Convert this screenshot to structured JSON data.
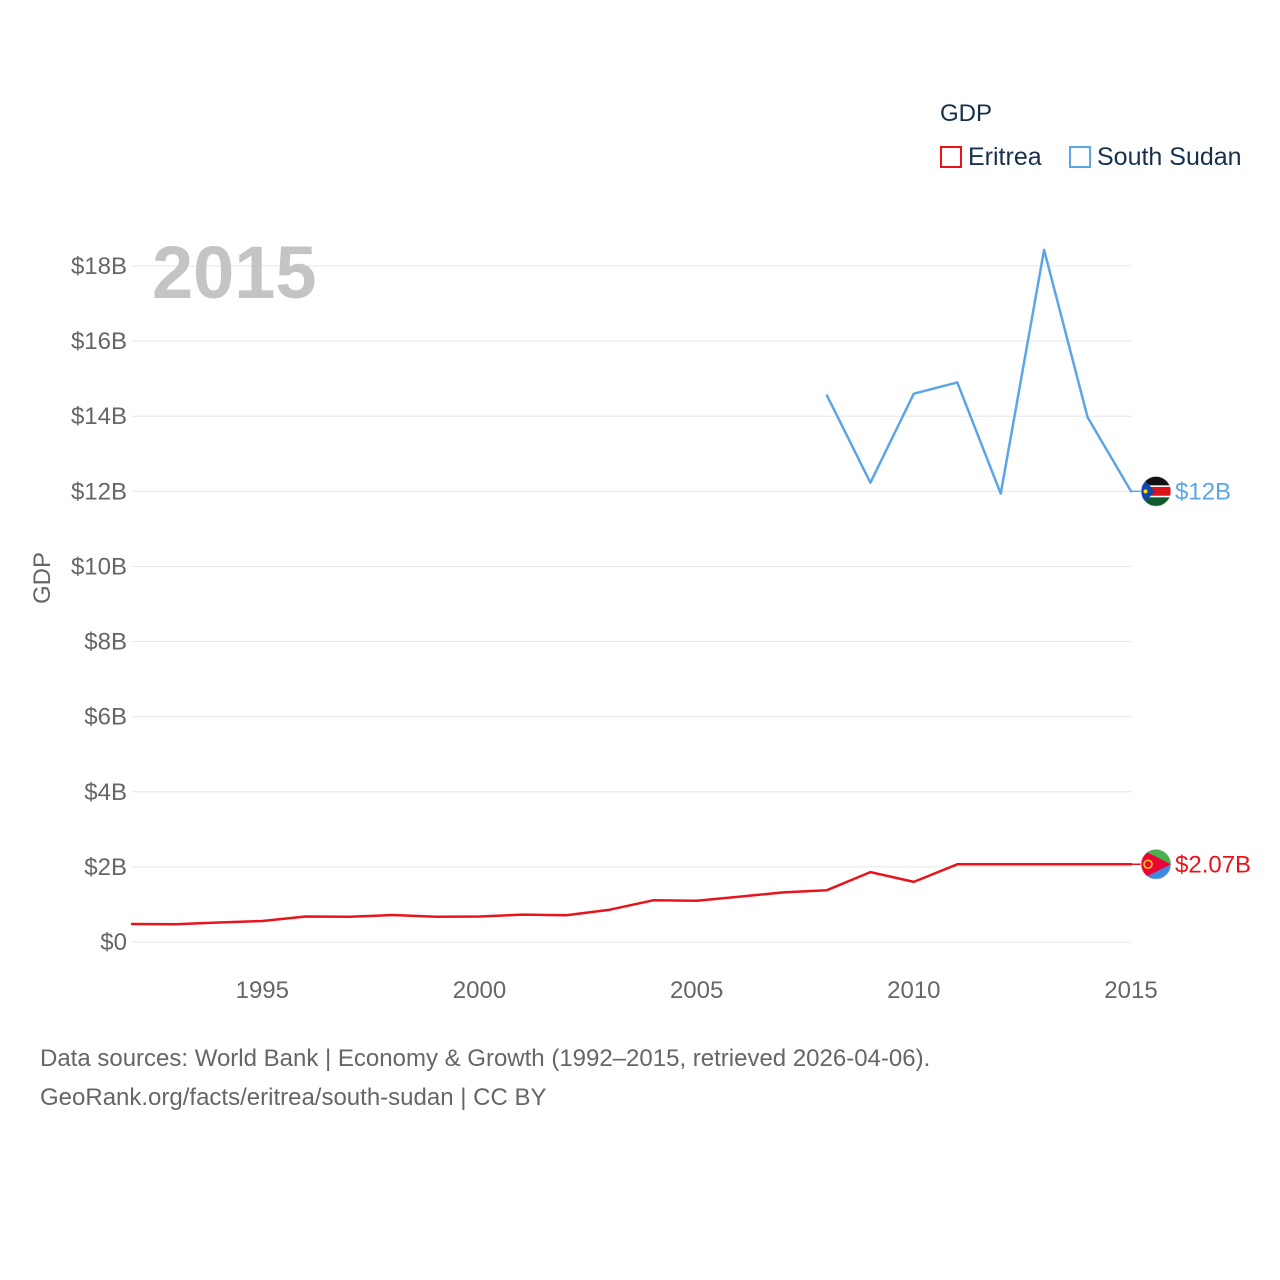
{
  "colors": {
    "eritrea": "#e8141c",
    "south_sudan": "#5ca5e6",
    "grid": "#e6e6e6",
    "tick": "#666666",
    "year": "#c4c4c4"
  },
  "legend": {
    "title": "GDP",
    "items": [
      {
        "label": "Eritrea",
        "color": "#e8141c"
      },
      {
        "label": "South Sudan",
        "color": "#5ca5e6"
      }
    ]
  },
  "chart_data": {
    "type": "line",
    "title": "GDP",
    "year_label": "2015",
    "ylabel": "GDP",
    "xlabel": "",
    "xlim": [
      1992,
      2015
    ],
    "ylim": [
      0,
      18
    ],
    "x_ticks": [
      "1995",
      "2000",
      "2005",
      "2010",
      "2015"
    ],
    "y_ticks": [
      "$0",
      "$2B",
      "$4B",
      "$6B",
      "$8B",
      "$10B",
      "$12B",
      "$14B",
      "$16B",
      "$18B"
    ],
    "y_tick_values": [
      0,
      2,
      4,
      6,
      8,
      10,
      12,
      14,
      16,
      18
    ],
    "x_tick_values": [
      1995,
      2000,
      2005,
      2010,
      2015
    ],
    "series": [
      {
        "name": "Eritrea",
        "color": "#e8141c",
        "end_label": "$2.07B",
        "x": [
          1992,
          1993,
          1994,
          1995,
          1996,
          1997,
          1998,
          1999,
          2000,
          2001,
          2002,
          2003,
          2004,
          2005,
          2006,
          2007,
          2008,
          2009,
          2010,
          2011,
          2012,
          2013,
          2014,
          2015
        ],
        "values": [
          0.48,
          0.47,
          0.52,
          0.56,
          0.68,
          0.67,
          0.72,
          0.67,
          0.68,
          0.73,
          0.71,
          0.86,
          1.11,
          1.1,
          1.21,
          1.32,
          1.38,
          1.86,
          1.6,
          2.07,
          2.07,
          2.07,
          2.07,
          2.07
        ]
      },
      {
        "name": "South Sudan",
        "color": "#5ca5e6",
        "end_label": "$12B",
        "x": [
          2008,
          2009,
          2010,
          2011,
          2012,
          2013,
          2014,
          2015
        ],
        "values": [
          14.55,
          12.23,
          14.6,
          14.9,
          11.94,
          18.43,
          13.97,
          12.0
        ]
      }
    ]
  },
  "footer": {
    "line1": "Data sources: World Bank | Economy & Growth (1992–2015, retrieved 2026-04-06).",
    "line2": "GeoRank.org/facts/eritrea/south-sudan | CC BY"
  }
}
